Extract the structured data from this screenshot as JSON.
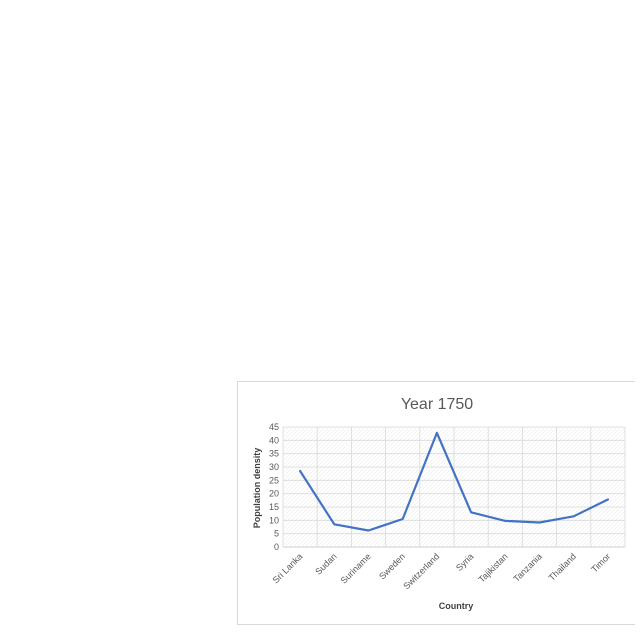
{
  "chart_data": {
    "type": "line",
    "title": "Year 1750",
    "xlabel": "Country",
    "ylabel": "Population density",
    "categories": [
      "Sri Lanka",
      "Sudan",
      "Suriname",
      "Sweden",
      "Switzerland",
      "Syria",
      "Tajikistan",
      "Tanzania",
      "Thailand",
      "Timor"
    ],
    "series": [
      {
        "values": [
          28.5,
          8.5,
          6.2,
          10.5,
          42.8,
          13,
          9.8,
          9.2,
          11.5,
          17.8
        ],
        "color": "#4472c4"
      }
    ],
    "ylim": [
      0,
      45
    ],
    "yticks": [
      0,
      5,
      10,
      15,
      20,
      25,
      30,
      35,
      40,
      45
    ],
    "grid": true,
    "legend": "none"
  }
}
